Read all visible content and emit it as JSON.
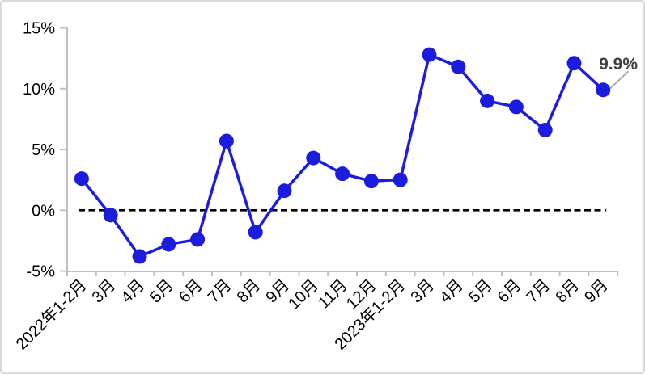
{
  "chart_data": {
    "type": "line",
    "title": "",
    "xlabel": "",
    "ylabel": "",
    "categories": [
      "2022年1-2月",
      "3月",
      "4月",
      "5月",
      "6月",
      "7月",
      "8月",
      "9月",
      "10月",
      "11月",
      "12月",
      "2023年1-2月",
      "3月",
      "4月",
      "5月",
      "6月",
      "7月",
      "8月",
      "9月"
    ],
    "values": [
      2.6,
      -0.4,
      -3.8,
      -2.8,
      -2.4,
      5.7,
      -1.8,
      1.6,
      4.3,
      3.0,
      2.4,
      2.5,
      12.8,
      11.8,
      9.0,
      8.5,
      6.6,
      12.1,
      9.9
    ],
    "ylim": [
      -5,
      15
    ],
    "yticks": [
      15,
      10,
      5,
      0,
      -5
    ],
    "ytick_suffix": "%",
    "grid": false,
    "legend": "none",
    "zero_line_style": "dashed",
    "marker": "circle",
    "annotation": {
      "text": "9.9%",
      "target_index": 18
    },
    "colors": {
      "line": "#1C1CE0",
      "marker": "#1C1CE0",
      "axis": "#BFBFBF",
      "tick_text": "#000000",
      "zero_line": "#000000",
      "annotation_text": "#404040",
      "leader_line": "#A6A6A6",
      "background": "#FFFFFF",
      "border": "#D9D9D9"
    }
  }
}
